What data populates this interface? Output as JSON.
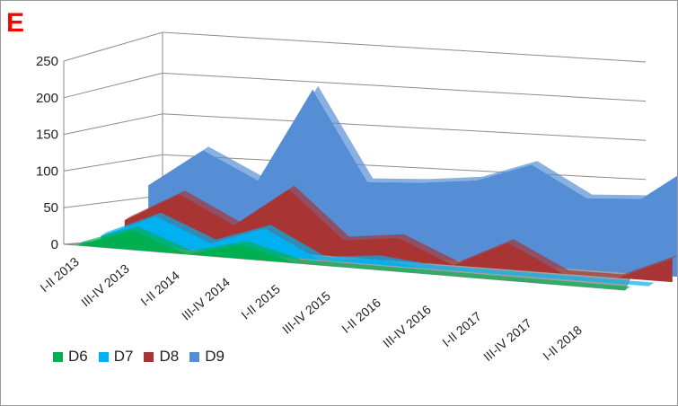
{
  "panel_label": "E",
  "chart_data": {
    "type": "area",
    "subtype": "3d-area",
    "title": "",
    "xlabel": "",
    "ylabel": "",
    "ylim": [
      0,
      250
    ],
    "yticks": [
      0,
      50,
      100,
      150,
      200,
      250
    ],
    "grid": true,
    "legend_position": "bottom-left",
    "categories": [
      "I-II 2013",
      "III-IV 2013",
      "I-II 2014",
      "III-IV 2014",
      "I-II 2015",
      "III-IV 2015",
      "I-II 2016",
      "III-IV 2016",
      "I-II 2017",
      "III-IV 2017",
      "I-II 2018"
    ],
    "series": [
      {
        "name": "D6",
        "color": "#00b050",
        "values": [
          0,
          28,
          0,
          20,
          0,
          0,
          0,
          0,
          0,
          0,
          0
        ]
      },
      {
        "name": "D7",
        "color": "#00b0f0",
        "values": [
          10,
          45,
          12,
          40,
          0,
          8,
          0,
          0,
          0,
          0,
          0
        ]
      },
      {
        "name": "D8",
        "color": "#a83434",
        "values": [
          30,
          75,
          35,
          95,
          25,
          35,
          0,
          40,
          0,
          0,
          35
        ]
      },
      {
        "name": "D9",
        "color": "#558ed5",
        "values": [
          80,
          140,
          100,
          245,
          110,
          115,
          125,
          155,
          110,
          115,
          175
        ]
      }
    ]
  }
}
